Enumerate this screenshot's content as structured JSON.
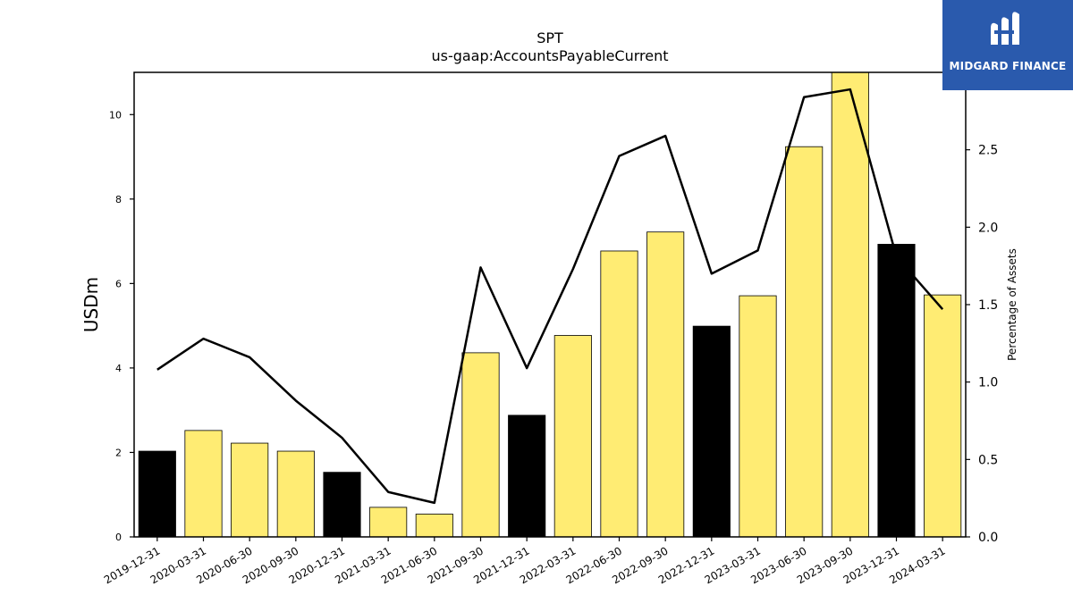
{
  "chart_data": {
    "type": "bar",
    "title": "SPT",
    "subtitle": "us-gaap:AccountsPayableCurrent",
    "ylabel": "USDm",
    "y2label": "Percentage of Assets",
    "ylim": [
      0,
      11
    ],
    "y2lim": [
      0,
      3.0
    ],
    "yticks": [
      0,
      2,
      4,
      6,
      8,
      10
    ],
    "y2ticks": [
      0.0,
      0.5,
      1.0,
      1.5,
      2.0,
      2.5
    ],
    "categories": [
      "2019-12-31",
      "2020-03-31",
      "2020-06-30",
      "2020-09-30",
      "2020-12-31",
      "2021-03-31",
      "2021-06-30",
      "2021-09-30",
      "2021-12-31",
      "2022-03-31",
      "2022-06-30",
      "2022-09-30",
      "2022-12-31",
      "2023-03-31",
      "2023-06-30",
      "2023-09-30",
      "2023-12-31",
      "2024-03-31"
    ],
    "series": [
      {
        "values": [
          2.03,
          2.52,
          2.22,
          2.03,
          1.53,
          0.7,
          0.54,
          4.36,
          2.88,
          4.77,
          6.77,
          7.22,
          4.99,
          5.71,
          9.24,
          11.0,
          6.93,
          5.73
        ],
        "bar_colors": [
          "#000000",
          "#ffec73",
          "#ffec73",
          "#ffec73",
          "#000000",
          "#ffec73",
          "#ffec73",
          "#ffec73",
          "#000000",
          "#ffec73",
          "#ffec73",
          "#ffec73",
          "#000000",
          "#ffec73",
          "#ffec73",
          "#ffec73",
          "#000000",
          "#ffec73"
        ]
      },
      {
        "axis": "right",
        "values": [
          1.08,
          1.28,
          1.16,
          0.88,
          0.64,
          0.29,
          0.22,
          1.74,
          1.09,
          1.73,
          2.46,
          2.59,
          1.7,
          1.85,
          2.84,
          2.89,
          1.81,
          1.47
        ],
        "color": "#000000"
      }
    ],
    "grid": false
  },
  "logo": {
    "text": "MIDGARD FINANCE",
    "color": "#2a5aad"
  }
}
